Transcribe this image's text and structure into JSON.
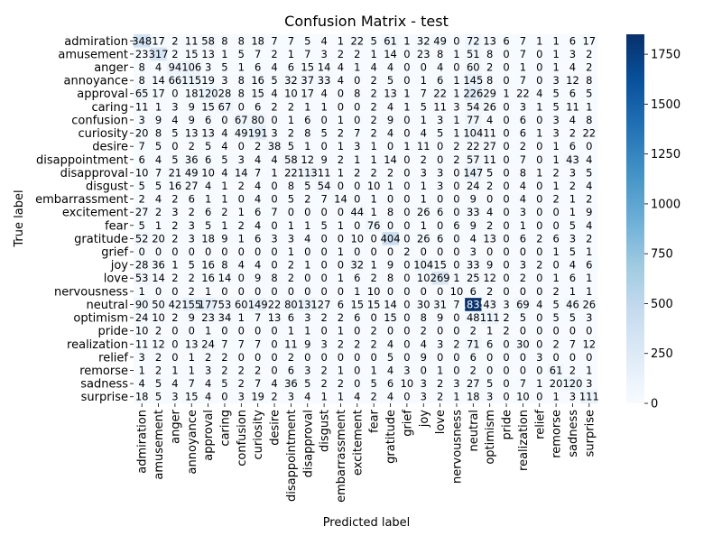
{
  "chart_data": {
    "type": "heatmap",
    "title": "Confusion Matrix - test",
    "xlabel": "Predicted label",
    "ylabel": "True label",
    "labels": [
      "admiration",
      "amusement",
      "anger",
      "annoyance",
      "approval",
      "caring",
      "confusion",
      "curiosity",
      "desire",
      "disappointment",
      "disapproval",
      "disgust",
      "embarrassment",
      "excitement",
      "fear",
      "gratitude",
      "grief",
      "joy",
      "love",
      "nervousness",
      "neutral",
      "optimism",
      "pride",
      "realization",
      "relief",
      "remorse",
      "sadness",
      "surprise"
    ],
    "matrix": [
      [
        348,
        17,
        2,
        11,
        58,
        8,
        8,
        18,
        7,
        7,
        5,
        4,
        1,
        22,
        5,
        61,
        1,
        32,
        49,
        0,
        72,
        13,
        6,
        7,
        1,
        1,
        6,
        17
      ],
      [
        23,
        317,
        2,
        15,
        13,
        1,
        5,
        7,
        2,
        1,
        7,
        3,
        2,
        2,
        1,
        14,
        0,
        23,
        8,
        1,
        51,
        8,
        0,
        7,
        0,
        1,
        3,
        2
      ],
      [
        8,
        4,
        94,
        106,
        3,
        5,
        1,
        6,
        4,
        6,
        15,
        14,
        4,
        1,
        4,
        4,
        0,
        0,
        4,
        0,
        60,
        2,
        0,
        1,
        0,
        1,
        4,
        2
      ],
      [
        8,
        14,
        66,
        115,
        19,
        3,
        8,
        16,
        5,
        32,
        37,
        33,
        4,
        0,
        2,
        5,
        0,
        1,
        6,
        1,
        145,
        8,
        0,
        7,
        0,
        3,
        12,
        8
      ],
      [
        65,
        17,
        0,
        18,
        120,
        28,
        8,
        15,
        4,
        10,
        17,
        4,
        0,
        8,
        2,
        13,
        1,
        7,
        22,
        1,
        226,
        29,
        1,
        22,
        4,
        5,
        6,
        5
      ],
      [
        11,
        1,
        3,
        9,
        15,
        67,
        0,
        6,
        2,
        2,
        1,
        1,
        0,
        0,
        2,
        4,
        1,
        5,
        11,
        3,
        54,
        26,
        0,
        3,
        1,
        5,
        11,
        1
      ],
      [
        3,
        9,
        4,
        9,
        6,
        0,
        67,
        80,
        0,
        1,
        6,
        0,
        1,
        0,
        2,
        9,
        0,
        1,
        3,
        1,
        77,
        4,
        0,
        6,
        0,
        3,
        4,
        8
      ],
      [
        20,
        8,
        5,
        13,
        13,
        4,
        49,
        191,
        3,
        2,
        8,
        5,
        2,
        7,
        2,
        4,
        0,
        4,
        5,
        1,
        104,
        11,
        0,
        6,
        1,
        3,
        2,
        22
      ],
      [
        7,
        5,
        0,
        2,
        5,
        4,
        0,
        2,
        38,
        5,
        1,
        0,
        1,
        3,
        1,
        0,
        1,
        11,
        0,
        2,
        22,
        27,
        0,
        2,
        0,
        1,
        6,
        0
      ],
      [
        6,
        4,
        5,
        36,
        6,
        5,
        3,
        4,
        4,
        58,
        12,
        9,
        2,
        1,
        1,
        14,
        0,
        2,
        0,
        2,
        57,
        11,
        0,
        7,
        0,
        1,
        43,
        4
      ],
      [
        10,
        7,
        21,
        49,
        10,
        4,
        14,
        7,
        1,
        22,
        113,
        11,
        1,
        2,
        2,
        2,
        0,
        3,
        3,
        0,
        147,
        5,
        0,
        8,
        1,
        2,
        3,
        5
      ],
      [
        5,
        5,
        16,
        27,
        4,
        1,
        2,
        4,
        0,
        8,
        5,
        54,
        0,
        0,
        10,
        1,
        0,
        1,
        3,
        0,
        24,
        2,
        0,
        4,
        0,
        1,
        2,
        4
      ],
      [
        2,
        4,
        2,
        6,
        1,
        1,
        0,
        4,
        0,
        5,
        2,
        7,
        14,
        0,
        1,
        0,
        0,
        1,
        0,
        0,
        9,
        0,
        0,
        4,
        0,
        2,
        1,
        2
      ],
      [
        27,
        2,
        3,
        2,
        6,
        2,
        1,
        6,
        7,
        0,
        0,
        0,
        0,
        44,
        1,
        8,
        0,
        26,
        6,
        0,
        33,
        4,
        0,
        3,
        0,
        0,
        1,
        9
      ],
      [
        5,
        1,
        2,
        3,
        5,
        1,
        2,
        4,
        0,
        1,
        1,
        5,
        1,
        0,
        76,
        0,
        0,
        1,
        0,
        6,
        9,
        2,
        0,
        1,
        0,
        0,
        5,
        4
      ],
      [
        52,
        20,
        2,
        3,
        18,
        9,
        1,
        6,
        3,
        3,
        4,
        0,
        0,
        10,
        0,
        404,
        0,
        26,
        6,
        0,
        4,
        13,
        0,
        6,
        2,
        6,
        3,
        2
      ],
      [
        0,
        0,
        0,
        0,
        0,
        0,
        0,
        0,
        0,
        1,
        0,
        0,
        1,
        0,
        0,
        0,
        2,
        0,
        0,
        0,
        3,
        0,
        0,
        0,
        0,
        1,
        5,
        1
      ],
      [
        28,
        36,
        1,
        5,
        16,
        8,
        4,
        4,
        0,
        2,
        1,
        0,
        0,
        32,
        1,
        9,
        0,
        104,
        15,
        0,
        33,
        9,
        0,
        3,
        2,
        0,
        4,
        6
      ],
      [
        53,
        14,
        2,
        2,
        16,
        14,
        0,
        9,
        8,
        2,
        0,
        0,
        1,
        6,
        2,
        8,
        0,
        10,
        269,
        1,
        25,
        12,
        0,
        2,
        0,
        1,
        6,
        1
      ],
      [
        1,
        0,
        0,
        2,
        1,
        0,
        0,
        0,
        0,
        0,
        0,
        0,
        0,
        1,
        10,
        0,
        0,
        0,
        0,
        10,
        6,
        2,
        0,
        0,
        0,
        2,
        1,
        1
      ],
      [
        90,
        50,
        42,
        155,
        177,
        53,
        60,
        149,
        22,
        80,
        131,
        27,
        6,
        15,
        15,
        14,
        0,
        30,
        31,
        7,
        1835,
        43,
        3,
        69,
        4,
        5,
        46,
        26
      ],
      [
        24,
        10,
        2,
        9,
        23,
        34,
        1,
        7,
        13,
        6,
        3,
        2,
        2,
        6,
        0,
        15,
        0,
        8,
        9,
        0,
        48,
        111,
        2,
        5,
        0,
        5,
        5,
        3
      ],
      [
        10,
        2,
        0,
        0,
        1,
        0,
        0,
        0,
        0,
        1,
        1,
        0,
        1,
        0,
        2,
        0,
        0,
        2,
        0,
        0,
        2,
        1,
        2,
        0,
        0,
        0,
        0,
        0
      ],
      [
        11,
        12,
        0,
        13,
        24,
        7,
        7,
        7,
        0,
        11,
        9,
        3,
        2,
        2,
        2,
        4,
        0,
        4,
        3,
        2,
        71,
        6,
        0,
        30,
        0,
        2,
        7,
        12
      ],
      [
        3,
        2,
        0,
        1,
        2,
        2,
        0,
        0,
        0,
        2,
        0,
        0,
        0,
        0,
        0,
        5,
        0,
        9,
        0,
        0,
        6,
        0,
        0,
        0,
        3,
        0,
        0,
        0
      ],
      [
        1,
        2,
        1,
        1,
        3,
        2,
        2,
        2,
        0,
        6,
        3,
        2,
        1,
        0,
        1,
        4,
        3,
        0,
        1,
        0,
        2,
        0,
        0,
        0,
        0,
        61,
        2,
        1
      ],
      [
        4,
        5,
        4,
        7,
        4,
        5,
        2,
        7,
        4,
        36,
        5,
        2,
        2,
        0,
        5,
        6,
        10,
        3,
        2,
        3,
        27,
        5,
        0,
        7,
        1,
        20,
        120,
        3
      ],
      [
        18,
        5,
        3,
        15,
        4,
        0,
        3,
        19,
        2,
        3,
        4,
        1,
        1,
        4,
        2,
        4,
        0,
        3,
        2,
        1,
        18,
        3,
        0,
        10,
        0,
        1,
        3,
        111
      ]
    ],
    "colorbar_ticks": [
      0,
      250,
      500,
      750,
      1000,
      1250,
      1500,
      1750
    ],
    "vmin": 0,
    "vmax": 1850,
    "colormap": "Blues",
    "colors": {
      "low": "#f7fbff",
      "high": "#08306b",
      "text_dark": "#000000",
      "text_light": "#ffffff"
    }
  }
}
